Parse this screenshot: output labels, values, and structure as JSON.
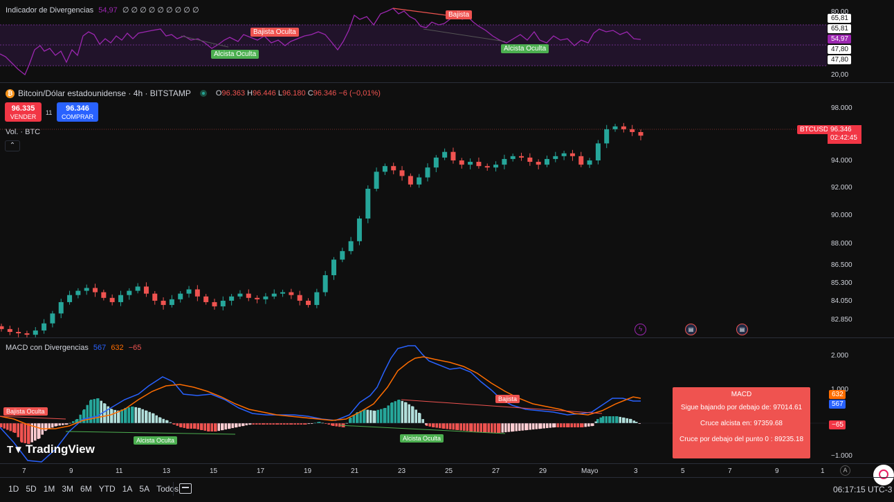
{
  "rsi": {
    "title": "Indicador de Divergencias",
    "value": "54,97",
    "extras": "∅ ∅ ∅ ∅ ∅ ∅ ∅ ∅ ∅",
    "axis": [
      "80,00",
      "20,00"
    ],
    "axis_tags": [
      "65,81",
      "65,81",
      "54,97",
      "47,80",
      "47,80"
    ],
    "labels": [
      "Bajista Oculta",
      "Alcista Oculta",
      "Bajista",
      "Alcista Oculta"
    ]
  },
  "symbol": {
    "name": "Bitcoin/Dólar estadounidense · 4h · BITSTAMP",
    "o_label": "O",
    "o": "96.363",
    "h_label": "H",
    "h": "96.446",
    "l_label": "L",
    "l": "96.180",
    "c_label": "C",
    "c": "96.346",
    "chg": "−6 (−0,01%)",
    "sell_price": "96.335",
    "sell_label": "VENDER",
    "spread": "11",
    "buy_price": "96.346",
    "buy_label": "COMPRAR",
    "vol": "Vol. · BTC",
    "ticker": "BTCUSD",
    "last_price": "96.346",
    "countdown": "02:42:45"
  },
  "price_axis": [
    "98.000",
    "94.000",
    "92.000",
    "90.000",
    "88.000",
    "86.500",
    "85.300",
    "84.050",
    "82.850"
  ],
  "macd": {
    "title": "MACD con Divergencias",
    "v1": "567",
    "v2": "632",
    "v3": "−65",
    "axis": [
      "2.000",
      "1.000",
      "−1.000"
    ],
    "tag_orange": "632",
    "tag_blue": "567",
    "tag_red": "−65",
    "labels": [
      "Bajista Oculta",
      "Alcista Oculta",
      "Bajista",
      "Alcista Oculta"
    ],
    "box": {
      "title": "MACD",
      "line1": "Sigue bajando por debajo de: 97014.61",
      "line2": "Cruce alcista en: 97359.68",
      "line3": "Cruce por debajo del punto 0 : 89235.18"
    }
  },
  "x_axis": [
    "7",
    "9",
    "11",
    "13",
    "15",
    "17",
    "19",
    "21",
    "23",
    "25",
    "27",
    "29",
    "Mayo",
    "3",
    "5",
    "7",
    "9",
    "1"
  ],
  "timeframes": [
    "1D",
    "5D",
    "1M",
    "3M",
    "6M",
    "YTD",
    "1A",
    "5A",
    "Todos"
  ],
  "clock": "06:17:15 UTC-3",
  "logo": "TradingView",
  "colors": {
    "up": "#26a69a",
    "down": "#ef5350",
    "rsi": "#9c27b0",
    "macd": "#2962ff",
    "signal": "#ff6d00",
    "bg": "#0f0f0f"
  },
  "chart_data": {
    "type": "candlestick",
    "candles_close": [
      82700,
      82500,
      82400,
      82300,
      82600,
      83100,
      83800,
      84600,
      85100,
      85400,
      85600,
      85300,
      84900,
      84600,
      85100,
      85400,
      85700,
      85200,
      84700,
      84400,
      84800,
      85200,
      85500,
      85000,
      84600,
      84300,
      84700,
      85000,
      85200,
      84900,
      84800,
      85000,
      85200,
      85300,
      85100,
      84700,
      84400,
      85300,
      86500,
      87600,
      88200,
      88900,
      90500,
      92600,
      93800,
      94200,
      93900,
      93500,
      92900,
      93400,
      94100,
      94800,
      95200,
      94600,
      94300,
      94500,
      94200,
      94100,
      94300,
      94700,
      94900,
      94800,
      94500,
      94300,
      94700,
      94900,
      95100,
      94900,
      94300,
      94600,
      95800,
      96800,
      97000,
      96800,
      96600,
      96346
    ],
    "ylim": [
      82500,
      98600
    ]
  }
}
